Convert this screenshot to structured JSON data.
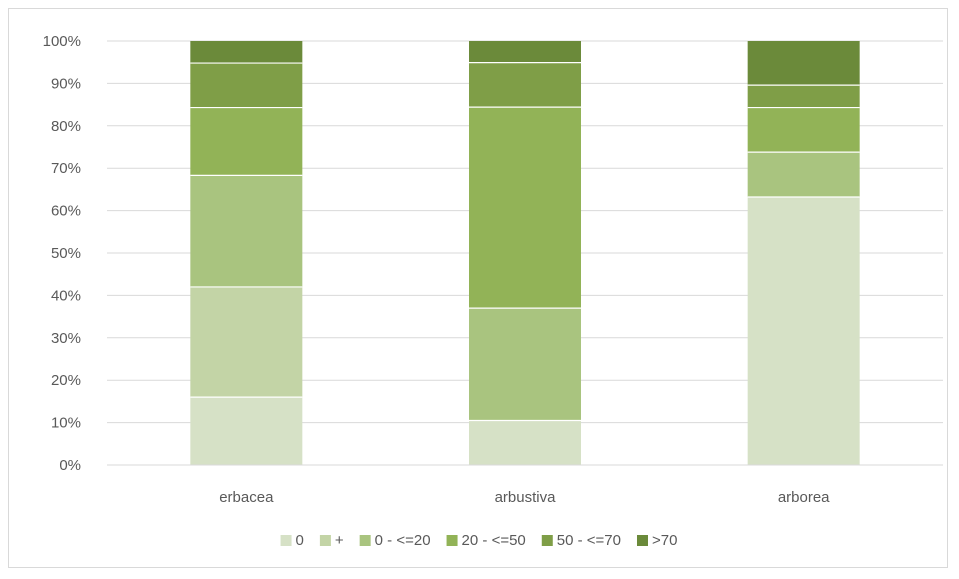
{
  "chart_data": {
    "type": "bar",
    "stacked": true,
    "percent": true,
    "categories": [
      "erbacea",
      "arbustiva",
      "arborea"
    ],
    "series": [
      {
        "name": "0",
        "color": "#d6e1c6",
        "values": [
          16,
          10.5,
          63.2
        ]
      },
      {
        "name": "+",
        "color": "#c3d4a6",
        "values": [
          26,
          0,
          0
        ]
      },
      {
        "name": "0 - <=20",
        "color": "#a9c47f",
        "values": [
          26.3,
          26.5,
          10.6
        ]
      },
      {
        "name": "20 - <=50",
        "color": "#92b357",
        "values": [
          16,
          47.4,
          10.5
        ]
      },
      {
        "name": "50 - <=70",
        "color": "#7f9e47",
        "values": [
          10.5,
          10.5,
          5.3
        ]
      },
      {
        "name": ">70",
        "color": "#6b8a3a",
        "values": [
          5.2,
          5.1,
          10.4
        ]
      }
    ],
    "ylim": [
      0,
      100
    ],
    "yticks": [
      "0%",
      "10%",
      "20%",
      "30%",
      "40%",
      "50%",
      "60%",
      "70%",
      "80%",
      "90%",
      "100%"
    ],
    "grid": true,
    "legend_position": "bottom"
  },
  "colors": {
    "grid": "#d9d9d9",
    "axis_text": "#595959"
  }
}
